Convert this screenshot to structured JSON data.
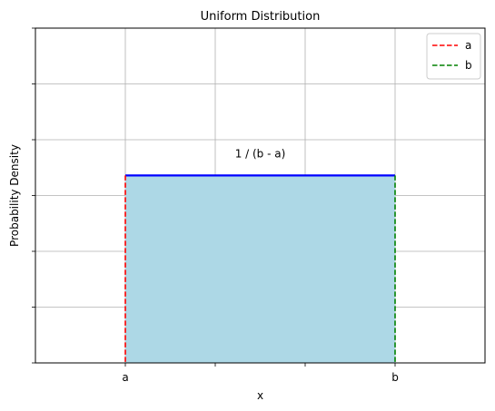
{
  "chart_data": {
    "type": "area",
    "title": "Uniform Distribution",
    "xlabel": "x",
    "ylabel": "Probability Density",
    "xlim": [
      -1,
      4
    ],
    "ylim": [
      0,
      6
    ],
    "grid": true,
    "x_ticks": [
      {
        "value": 0,
        "label": "a"
      },
      {
        "value": 1,
        "label": ""
      },
      {
        "value": 2,
        "label": ""
      },
      {
        "value": 3,
        "label": "b"
      }
    ],
    "y_ticks": [
      0,
      1,
      2,
      3,
      4,
      5,
      6
    ],
    "density": {
      "x_start": 0,
      "x_end": 3,
      "height": 3.36,
      "line_color": "#0000ff",
      "fill_color": "#add8e6"
    },
    "series": [
      {
        "name": "a",
        "type": "vline",
        "x": 0,
        "color": "#ff0000",
        "dash": "dashed"
      },
      {
        "name": "b",
        "type": "vline",
        "x": 3,
        "color": "#008000",
        "dash": "dashed"
      }
    ],
    "annotation": {
      "text": "1 / (b - a)",
      "x": 1.5,
      "y": 3.75
    },
    "legend": {
      "position": "top-right"
    }
  }
}
